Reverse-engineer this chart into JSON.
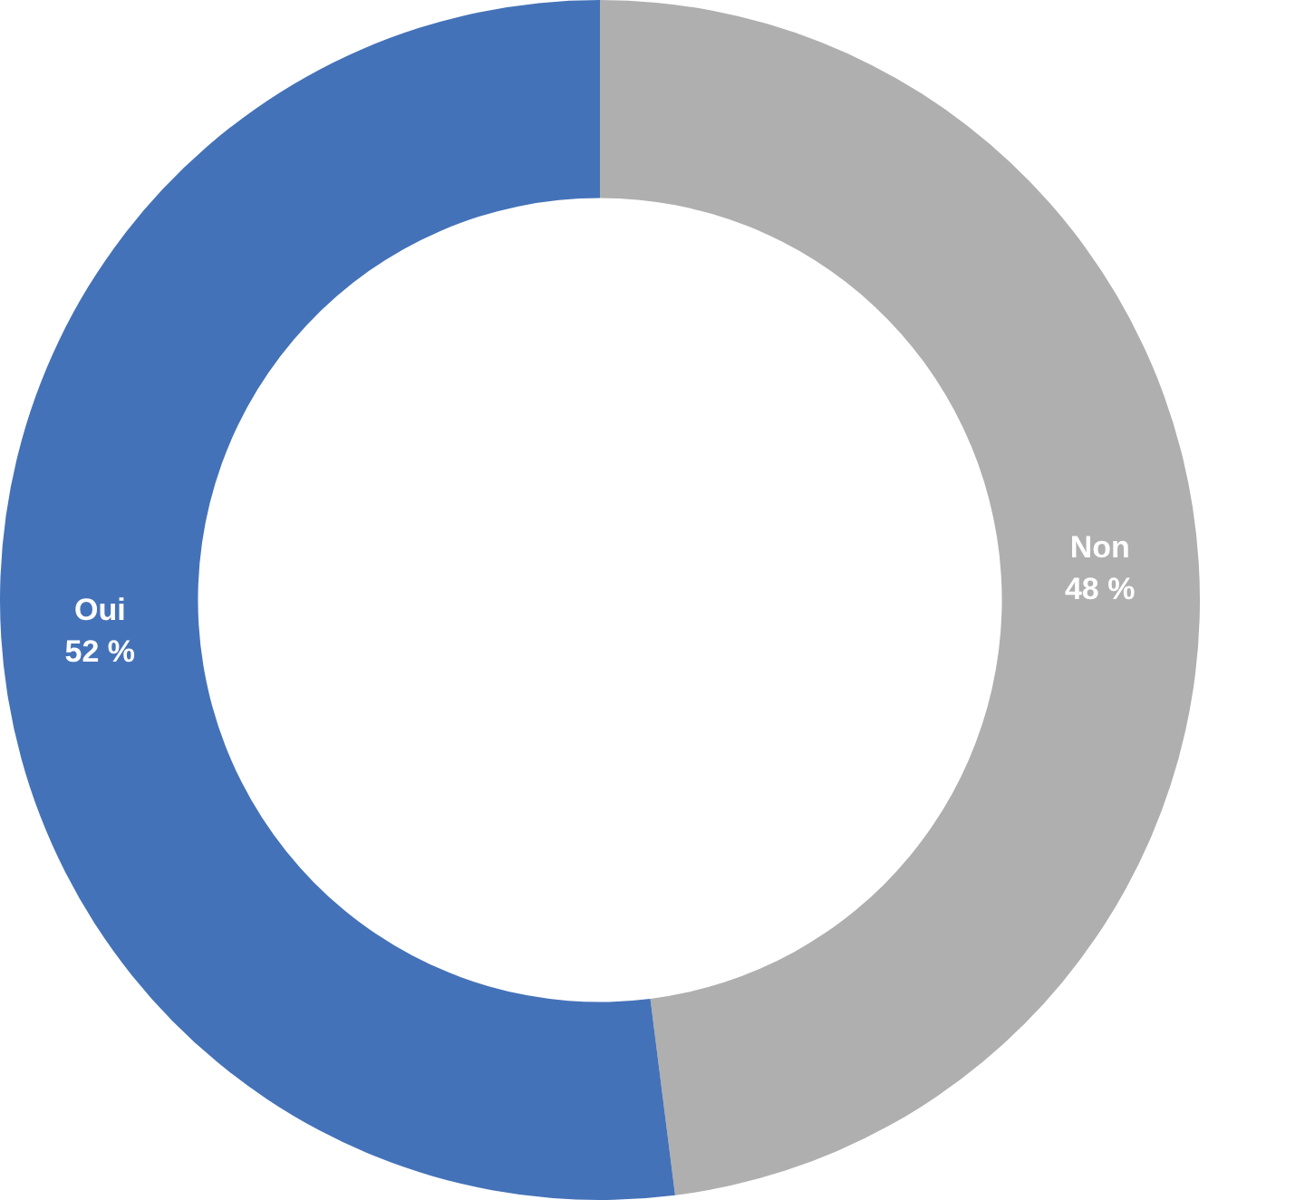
{
  "chart_data": {
    "type": "donut",
    "categories": [
      "Non",
      "Oui"
    ],
    "values": [
      48,
      52
    ],
    "colors": [
      "#afafaf",
      "#4472b8"
    ],
    "value_labels": [
      "48 %",
      "52 %"
    ],
    "legend": false
  }
}
